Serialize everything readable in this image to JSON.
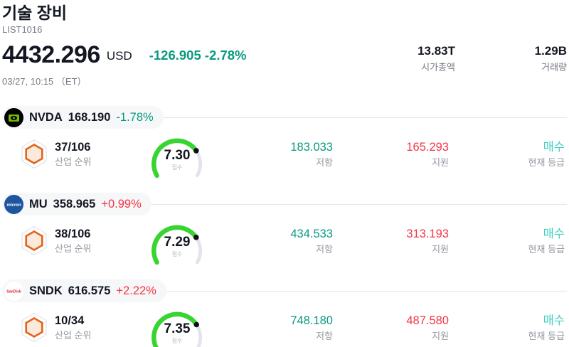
{
  "header": {
    "title": "기술 장비",
    "list_id": "LIST1016",
    "price": "4432.296",
    "currency": "USD",
    "change": "-126.905 -2.78%",
    "datetime": "03/27, 10:15 （ET）",
    "market_cap": {
      "value": "13.83T",
      "label": "시가총액"
    },
    "volume": {
      "value": "1.29B",
      "label": "거래량"
    }
  },
  "labels": {
    "rank": "산업 순위",
    "score": "점수",
    "resistance": "저항",
    "support": "지원",
    "rating": "현재 등급"
  },
  "colors": {
    "down_teal": "#089981",
    "up_red": "#f23645",
    "rating_cyan": "#3fd0c0",
    "gauge_green": "#38d430",
    "gauge_track": "#e2e4ec",
    "hex_orange": "#e2641c"
  },
  "stocks": [
    {
      "symbol": "NVDA",
      "price": "168.190",
      "change": "-1.78%",
      "direction": "down",
      "rank": "37/106",
      "score": 7.3,
      "score_display": "7.30",
      "resistance": "183.033",
      "support": "165.293",
      "rating": "매수",
      "logo_text": ""
    },
    {
      "symbol": "MU",
      "price": "358.965",
      "change": "+0.99%",
      "direction": "up",
      "rank": "38/106",
      "score": 7.29,
      "score_display": "7.29",
      "resistance": "434.533",
      "support": "313.193",
      "rating": "매수",
      "logo_text": "micron"
    },
    {
      "symbol": "SNDK",
      "price": "616.575",
      "change": "+2.22%",
      "direction": "up",
      "rank": "10/34",
      "score": 7.35,
      "score_display": "7.35",
      "resistance": "748.180",
      "support": "487.580",
      "rating": "매수",
      "logo_text": "SanDisk"
    }
  ],
  "chart_data": [
    {
      "type": "gauge",
      "title": "NVDA 점수",
      "value": 7.3,
      "range": [
        0,
        10
      ],
      "sweep_deg": 240
    },
    {
      "type": "gauge",
      "title": "MU 점수",
      "value": 7.29,
      "range": [
        0,
        10
      ],
      "sweep_deg": 240
    },
    {
      "type": "gauge",
      "title": "SNDK 점수",
      "value": 7.35,
      "range": [
        0,
        10
      ],
      "sweep_deg": 240
    }
  ]
}
